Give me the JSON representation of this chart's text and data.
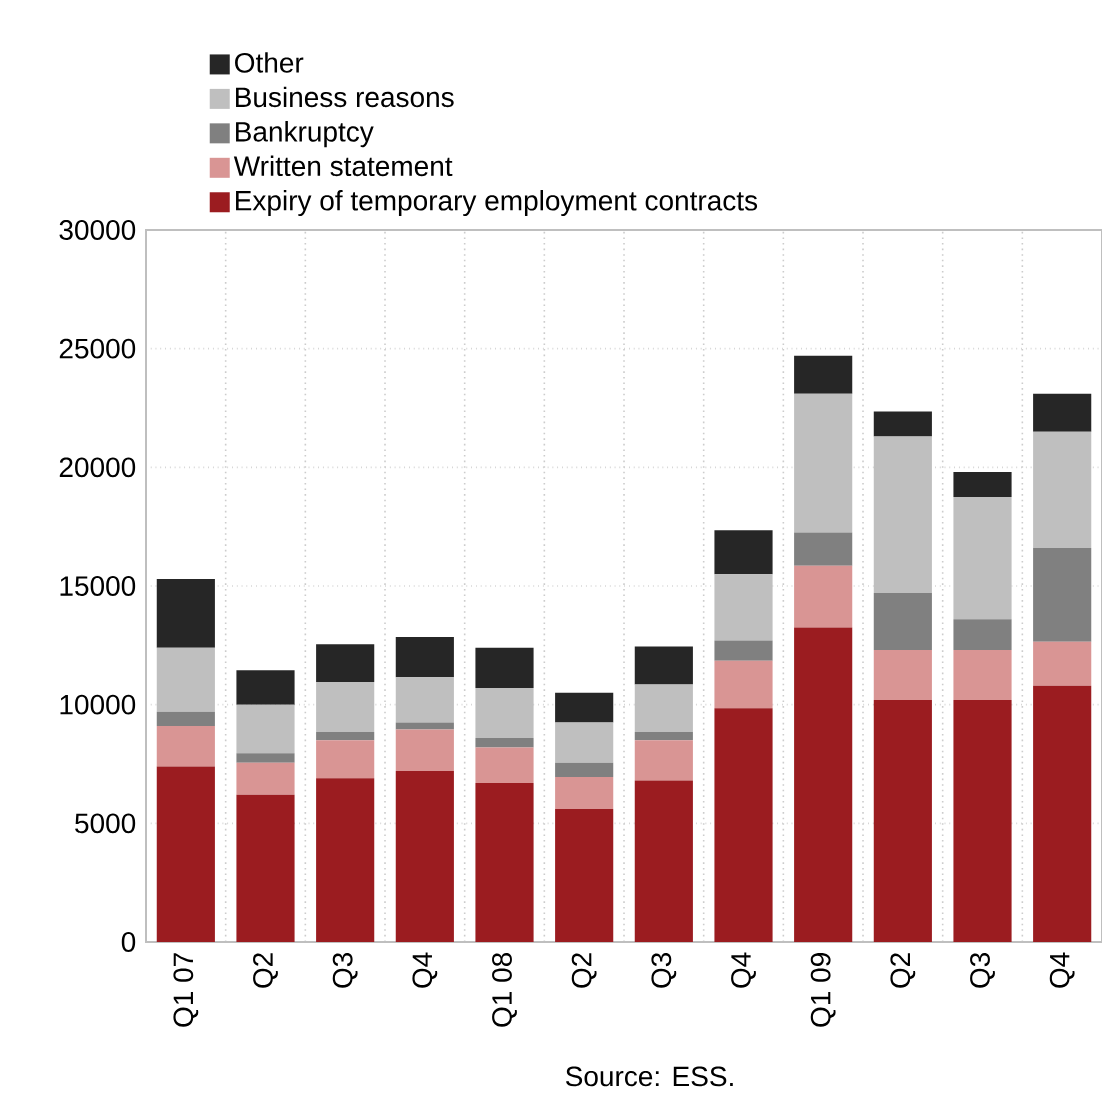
{
  "chart_data": {
    "type": "bar",
    "stacked": true,
    "categories": [
      "Q1 07",
      "Q2",
      "Q3",
      "Q4",
      "Q1 08",
      "Q2",
      "Q3",
      "Q4",
      "Q1 09",
      "Q2",
      "Q3",
      "Q4"
    ],
    "series": [
      {
        "name": "Expiry of temporary employment contracts",
        "color": "#9b1c20",
        "values": [
          7400,
          6200,
          6900,
          7200,
          6700,
          5600,
          6800,
          9850,
          13250,
          10200,
          10200,
          10800
        ]
      },
      {
        "name": "Written statement",
        "color": "#d99594",
        "values": [
          1700,
          1350,
          1600,
          1750,
          1500,
          1350,
          1700,
          2000,
          2600,
          2100,
          2100,
          1850
        ]
      },
      {
        "name": "Bankruptcy",
        "color": "#808080",
        "values": [
          600,
          400,
          350,
          300,
          400,
          600,
          350,
          850,
          1400,
          2400,
          1300,
          3950
        ]
      },
      {
        "name": "Business reasons",
        "color": "#bfbfbf",
        "values": [
          2700,
          2050,
          2100,
          1900,
          2100,
          1700,
          2000,
          2800,
          5850,
          6600,
          5150,
          4900
        ]
      },
      {
        "name": "Other",
        "color": "#262626",
        "values": [
          2900,
          1450,
          1600,
          1700,
          1700,
          1250,
          1600,
          1850,
          1600,
          1050,
          1050,
          1600
        ]
      }
    ],
    "ylim": [
      0,
      30000
    ],
    "yticks": [
      0,
      5000,
      10000,
      15000,
      20000,
      25000,
      30000
    ],
    "grid": true,
    "legend": "top left",
    "annotations": [
      "Source: ESS."
    ]
  }
}
